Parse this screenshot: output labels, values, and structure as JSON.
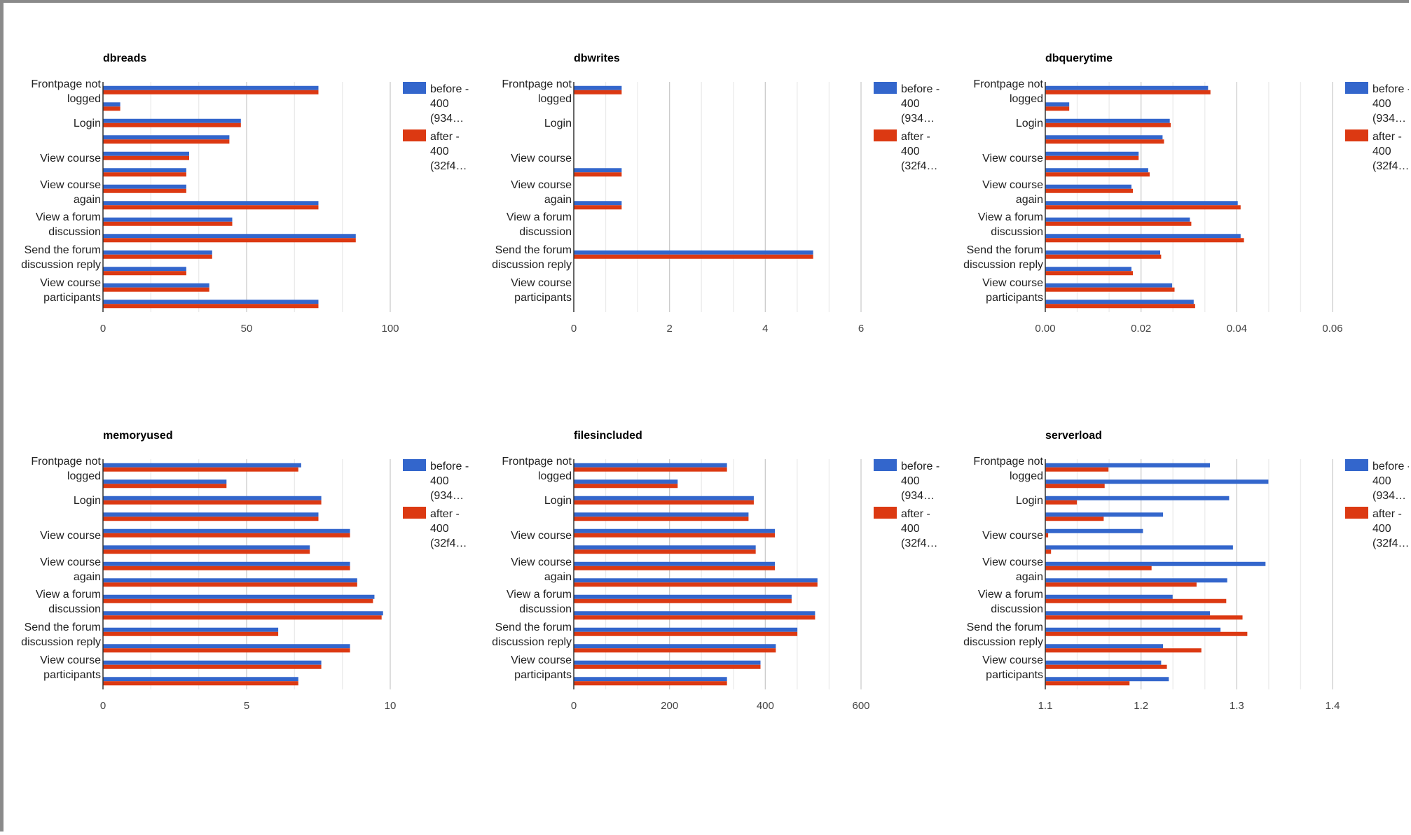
{
  "page": {
    "background": "#ffffff",
    "frame_color": "#8a8a8a"
  },
  "colors": {
    "before": "#3366cc",
    "after": "#dc3912",
    "grid": "#cccccc",
    "axis": "#333333"
  },
  "legend": [
    {
      "lines": [
        "before -",
        "400",
        "(934…"
      ],
      "color": "#3366cc"
    },
    {
      "lines": [
        "after -",
        "400",
        "(32f4…"
      ],
      "color": "#dc3912"
    }
  ],
  "category_labels": [
    {
      "lines": [
        "Frontpage not",
        "logged"
      ]
    },
    {
      "lines": [
        "Login"
      ]
    },
    {
      "lines": [
        "View course"
      ]
    },
    {
      "lines": [
        "View course",
        "again"
      ]
    },
    {
      "lines": [
        "View a forum",
        "discussion"
      ]
    },
    {
      "lines": [
        "Send the forum",
        "discussion reply"
      ]
    },
    {
      "lines": [
        "View course",
        "participants"
      ]
    }
  ],
  "chart_data": [
    {
      "type": "bar",
      "orientation": "horizontal",
      "title": "dbreads",
      "xlim": [
        0,
        100
      ],
      "ticks": [
        0,
        50,
        100
      ],
      "tick_labels": [
        "0",
        "50",
        "100"
      ],
      "grid": true,
      "legend_position": "right",
      "series": [
        {
          "name": "before - 400 (934…",
          "values": [
            75,
            6,
            48,
            44,
            30,
            29,
            29,
            75,
            45,
            88,
            38,
            29,
            37,
            75
          ]
        },
        {
          "name": "after - 400 (32f4…",
          "values": [
            75,
            6,
            48,
            44,
            30,
            29,
            29,
            75,
            45,
            88,
            38,
            29,
            37,
            75
          ]
        }
      ]
    },
    {
      "type": "bar",
      "orientation": "horizontal",
      "title": "dbwrites",
      "xlim": [
        0,
        6
      ],
      "ticks": [
        0,
        2,
        4,
        6
      ],
      "tick_labels": [
        "0",
        "2",
        "4",
        "6"
      ],
      "grid": true,
      "legend_position": "right",
      "series": [
        {
          "name": "before - 400 (934…",
          "values": [
            1,
            0,
            0,
            0,
            0,
            1,
            0,
            1,
            0,
            0,
            5,
            0,
            0,
            0
          ]
        },
        {
          "name": "after - 400 (32f4…",
          "values": [
            1,
            0,
            0,
            0,
            0,
            1,
            0,
            1,
            0,
            0,
            5,
            0,
            0,
            0
          ]
        }
      ]
    },
    {
      "type": "bar",
      "orientation": "horizontal",
      "title": "dbquerytime",
      "xlim": [
        0,
        0.06
      ],
      "ticks": [
        0,
        0.02,
        0.04,
        0.06
      ],
      "tick_labels": [
        "0.00",
        "0.02",
        "0.04",
        "0.06"
      ],
      "grid": true,
      "legend_position": "right",
      "series": [
        {
          "name": "before - 400 (934…",
          "values": [
            0.034,
            0.005,
            0.026,
            0.0245,
            0.0195,
            0.0215,
            0.018,
            0.0402,
            0.0302,
            0.0408,
            0.024,
            0.018,
            0.0265,
            0.031
          ]
        },
        {
          "name": "after - 400 (32f4…",
          "values": [
            0.0345,
            0.005,
            0.0262,
            0.0248,
            0.0195,
            0.0218,
            0.0183,
            0.0408,
            0.0305,
            0.0415,
            0.0242,
            0.0183,
            0.027,
            0.0313
          ]
        }
      ]
    },
    {
      "type": "bar",
      "orientation": "horizontal",
      "title": "memoryused",
      "xlim": [
        0,
        10
      ],
      "ticks": [
        0,
        5,
        10
      ],
      "tick_labels": [
        "0",
        "5",
        "10"
      ],
      "grid": true,
      "legend_position": "right",
      "series": [
        {
          "name": "before - 400 (934…",
          "values": [
            6.9,
            4.3,
            7.6,
            7.5,
            8.6,
            7.2,
            8.6,
            8.85,
            9.45,
            9.75,
            6.1,
            8.6,
            7.6,
            6.8
          ]
        },
        {
          "name": "after - 400 (32f4…",
          "values": [
            6.8,
            4.3,
            7.6,
            7.5,
            8.6,
            7.2,
            8.6,
            8.85,
            9.4,
            9.7,
            6.1,
            8.6,
            7.6,
            6.8
          ]
        }
      ]
    },
    {
      "type": "bar",
      "orientation": "horizontal",
      "title": "filesincluded",
      "xlim": [
        0,
        600
      ],
      "ticks": [
        0,
        200,
        400,
        600
      ],
      "tick_labels": [
        "0",
        "200",
        "400",
        "600"
      ],
      "grid": true,
      "legend_position": "right",
      "series": [
        {
          "name": "before - 400 (934…",
          "values": [
            320,
            217,
            376,
            365,
            420,
            380,
            420,
            509,
            455,
            504,
            467,
            422,
            390,
            320
          ]
        },
        {
          "name": "after - 400 (32f4…",
          "values": [
            320,
            217,
            376,
            365,
            420,
            380,
            420,
            509,
            455,
            504,
            467,
            422,
            390,
            320
          ]
        }
      ]
    },
    {
      "type": "bar",
      "orientation": "horizontal",
      "title": "serverload",
      "xlim": [
        1.1,
        1.4
      ],
      "ticks": [
        1.1,
        1.2,
        1.3,
        1.4
      ],
      "tick_labels": [
        "1.1",
        "1.2",
        "1.3",
        "1.4"
      ],
      "grid": true,
      "legend_position": "right",
      "series": [
        {
          "name": "before - 400 (934…",
          "values": [
            1.272,
            1.333,
            1.292,
            1.223,
            1.202,
            1.296,
            1.33,
            1.29,
            1.233,
            1.272,
            1.283,
            1.223,
            1.221,
            1.229
          ]
        },
        {
          "name": "after - 400 (32f4…",
          "values": [
            1.166,
            1.162,
            1.133,
            1.161,
            1.103,
            1.106,
            1.211,
            1.258,
            1.289,
            1.306,
            1.311,
            1.263,
            1.227,
            1.188
          ]
        }
      ]
    }
  ]
}
